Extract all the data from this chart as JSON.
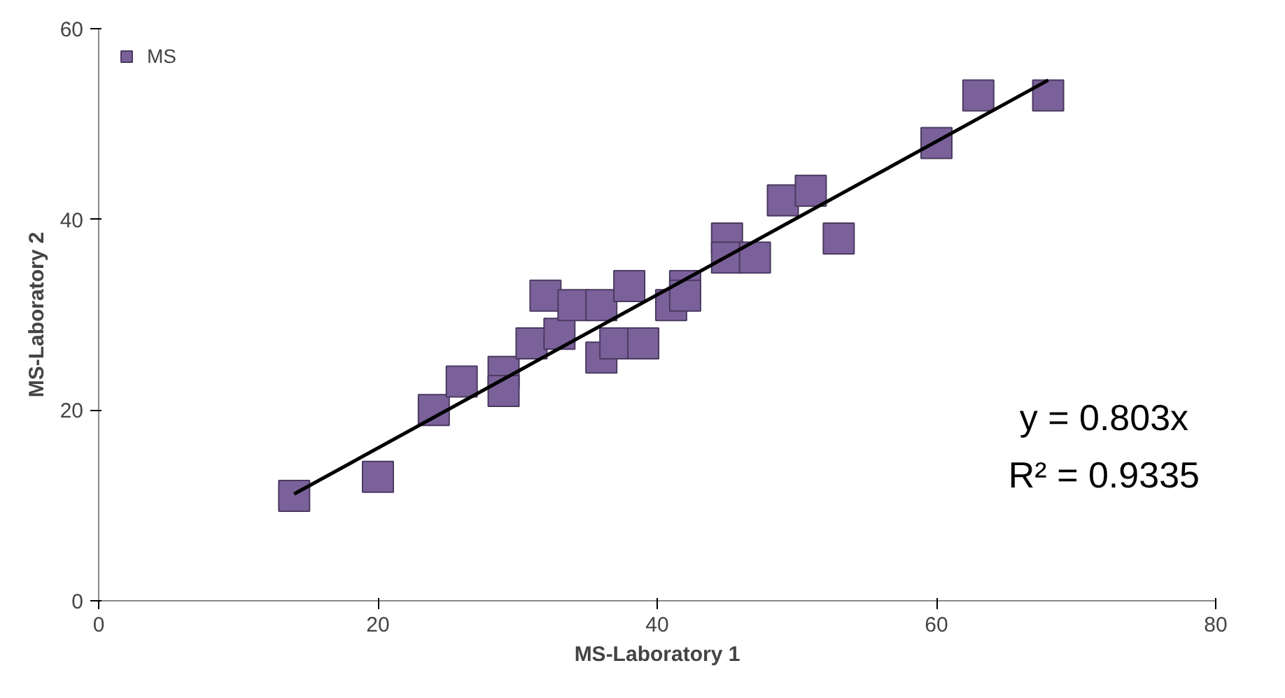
{
  "chart_data": {
    "type": "scatter",
    "xlabel": "MS-Laboratory 1",
    "ylabel": "MS-Laboratory 2",
    "xlim": [
      0,
      80
    ],
    "ylim": [
      0,
      60
    ],
    "xticks": [
      0,
      20,
      40,
      60,
      80
    ],
    "yticks": [
      0,
      20,
      40,
      60
    ],
    "legend": "top left",
    "grid": false,
    "series": [
      {
        "name": "MS",
        "color": "#7b619a",
        "marker": "square",
        "x": [
          14,
          20,
          24,
          26,
          29,
          29,
          31,
          32,
          33,
          34,
          36,
          36,
          37,
          38,
          39,
          41,
          42,
          42,
          45,
          45,
          47,
          49,
          51,
          53,
          60,
          63,
          68
        ],
        "values": [
          11,
          13,
          20,
          23,
          24,
          22,
          27,
          32,
          28,
          31,
          31,
          25.5,
          27,
          33,
          27,
          31,
          33,
          32,
          38,
          36,
          36,
          42,
          43,
          38,
          48,
          53,
          53
        ]
      },
      {
        "type": "line",
        "color": "#000000",
        "x": [
          14,
          68
        ],
        "values": [
          11.2,
          54.6
        ]
      }
    ],
    "annotations": [
      "y = 0.803x",
      "R² = 0.9335"
    ]
  }
}
